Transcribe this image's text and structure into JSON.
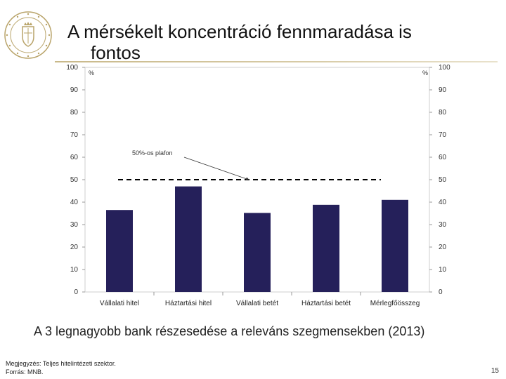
{
  "slide": {
    "title_line1": "A mérsékelt koncentráció fennmaradása is",
    "title_line2": "fontos",
    "caption": "A 3 legnagyobb bank részesedése a releváns szegmensekben (2013)",
    "note": "Megjegyzés: Teljes hitelintézeti szektor.",
    "source": "Forrás: MNB.",
    "page_number": "15"
  },
  "colors": {
    "bar": "#25205a",
    "dash": "#000000",
    "grid": "#bfbfbf",
    "logo": "#b9a46a"
  },
  "chart_data": {
    "type": "bar",
    "categories": [
      "Vállalati hitel",
      "Háztartási hitel",
      "Vállalati betét",
      "Háztartási betét",
      "Mérlegfőösszeg"
    ],
    "values": [
      36.5,
      47,
      35.2,
      38.8,
      41
    ],
    "ylim": [
      0,
      100
    ],
    "yticks": [
      0,
      10,
      20,
      30,
      40,
      50,
      60,
      70,
      80,
      90,
      100
    ],
    "left_axis_unit": "%",
    "right_axis_unit": "%",
    "threshold": 50,
    "annotation": "50%-os plafon",
    "grid": false
  }
}
